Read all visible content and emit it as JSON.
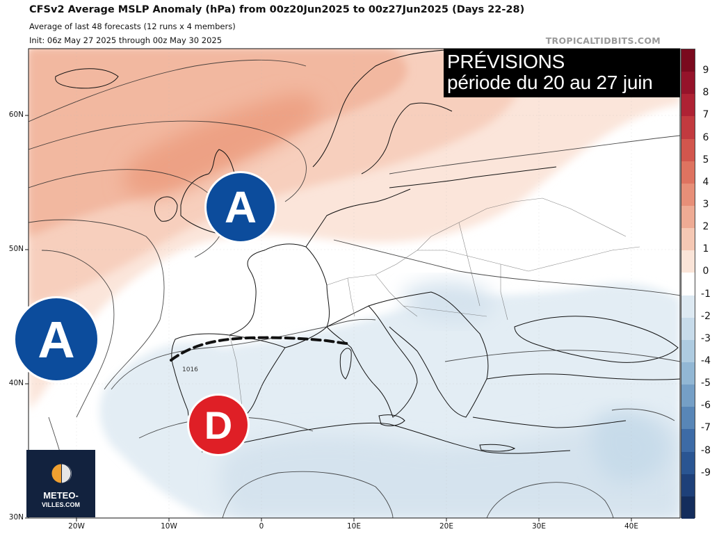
{
  "header": {
    "title": "CFSv2 Average MSLP Anomaly (hPa) from 00z20Jun2025 to 00z27Jun2025 (Days 22-28)",
    "subtitle": "Average of last 48 forecasts (12 runs x 4 members)",
    "init": "Init: 06z May 27 2025 through 00z May 30 2025",
    "credit": "TROPICALTIDBITS.COM"
  },
  "overlay": {
    "line1": "PRÉVISIONS",
    "line2": "période du 20 au 27 juin"
  },
  "pressure_centers": [
    {
      "letter": "A",
      "kind": "high"
    },
    {
      "letter": "A",
      "kind": "high"
    },
    {
      "letter": "D",
      "kind": "low"
    }
  ],
  "isobar_label": "1016",
  "axes": {
    "lat_ticks": [
      "60N",
      "50N",
      "40N",
      "30N"
    ],
    "lon_ticks": [
      "20W",
      "10W",
      "0",
      "10E",
      "20E",
      "30E",
      "40E"
    ]
  },
  "colorbar": {
    "labels": [
      "9",
      "8",
      "7",
      "6",
      "5",
      "4",
      "3",
      "2",
      "1",
      "0",
      "-1",
      "-2",
      "-3",
      "-4",
      "-5",
      "-6",
      "-7",
      "-8",
      "-9"
    ],
    "colors": [
      "#7a0a1e",
      "#95132a",
      "#ae2234",
      "#c23a3f",
      "#d2564d",
      "#de7360",
      "#e78f78",
      "#eeab94",
      "#f5c8b4",
      "#fae4d8",
      "#ffffff",
      "#dde9f2",
      "#c7dbea",
      "#aecbe0",
      "#92b7d4",
      "#759fc6",
      "#5886b7",
      "#3d6ba6",
      "#2a5592",
      "#1e4079",
      "#142d5c"
    ]
  },
  "logo": {
    "line1": "METEO-",
    "line2": "VILLES.COM"
  }
}
